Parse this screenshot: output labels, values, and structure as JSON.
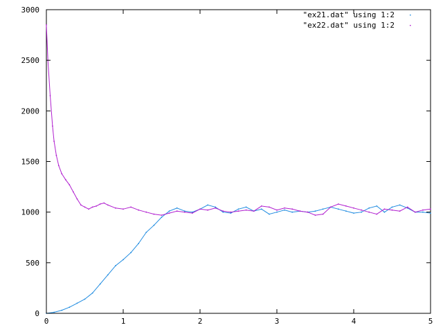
{
  "chart_data": {
    "type": "scatter",
    "title": "",
    "xlabel": "",
    "ylabel": "",
    "xlim": [
      0,
      5
    ],
    "ylim": [
      0,
      3000
    ],
    "xticks": [
      "0",
      "1",
      "2",
      "3",
      "4",
      "5"
    ],
    "yticks": [
      "0",
      "500",
      "1000",
      "1500",
      "2000",
      "2500",
      "3000"
    ],
    "grid": false,
    "legend_position": "top-right",
    "series": [
      {
        "name": "\"ex21.dat\" using 1:2",
        "color": "#1f8be0",
        "points": [
          [
            0,
            0
          ],
          [
            0.1,
            10
          ],
          [
            0.2,
            30
          ],
          [
            0.3,
            60
          ],
          [
            0.4,
            100
          ],
          [
            0.5,
            140
          ],
          [
            0.6,
            200
          ],
          [
            0.7,
            290
          ],
          [
            0.8,
            380
          ],
          [
            0.9,
            470
          ],
          [
            1.0,
            530
          ],
          [
            1.1,
            600
          ],
          [
            1.2,
            690
          ],
          [
            1.3,
            800
          ],
          [
            1.4,
            870
          ],
          [
            1.5,
            950
          ],
          [
            1.6,
            1010
          ],
          [
            1.7,
            1040
          ],
          [
            1.8,
            1010
          ],
          [
            1.9,
            1000
          ],
          [
            2.0,
            1030
          ],
          [
            2.1,
            1070
          ],
          [
            2.2,
            1050
          ],
          [
            2.3,
            1000
          ],
          [
            2.4,
            990
          ],
          [
            2.5,
            1030
          ],
          [
            2.6,
            1050
          ],
          [
            2.7,
            1010
          ],
          [
            2.8,
            1030
          ],
          [
            2.9,
            980
          ],
          [
            3.0,
            1000
          ],
          [
            3.1,
            1020
          ],
          [
            3.2,
            1000
          ],
          [
            3.3,
            1010
          ],
          [
            3.4,
            1000
          ],
          [
            3.5,
            1010
          ],
          [
            3.6,
            1030
          ],
          [
            3.7,
            1050
          ],
          [
            3.8,
            1030
          ],
          [
            3.9,
            1010
          ],
          [
            4.0,
            990
          ],
          [
            4.1,
            1000
          ],
          [
            4.2,
            1040
          ],
          [
            4.3,
            1060
          ],
          [
            4.4,
            1000
          ],
          [
            4.5,
            1050
          ],
          [
            4.6,
            1070
          ],
          [
            4.7,
            1040
          ],
          [
            4.8,
            1000
          ],
          [
            4.9,
            1000
          ],
          [
            5.0,
            990
          ]
        ]
      },
      {
        "name": "\"ex22.dat\" using 1:2",
        "color": "#b01ecf",
        "points": [
          [
            0,
            2850
          ],
          [
            0.02,
            2500
          ],
          [
            0.05,
            2150
          ],
          [
            0.08,
            1850
          ],
          [
            0.1,
            1700
          ],
          [
            0.13,
            1560
          ],
          [
            0.16,
            1460
          ],
          [
            0.2,
            1380
          ],
          [
            0.25,
            1320
          ],
          [
            0.3,
            1270
          ],
          [
            0.35,
            1200
          ],
          [
            0.4,
            1130
          ],
          [
            0.45,
            1070
          ],
          [
            0.5,
            1050
          ],
          [
            0.55,
            1030
          ],
          [
            0.6,
            1050
          ],
          [
            0.65,
            1060
          ],
          [
            0.7,
            1080
          ],
          [
            0.75,
            1090
          ],
          [
            0.8,
            1070
          ],
          [
            0.9,
            1040
          ],
          [
            1.0,
            1030
          ],
          [
            1.1,
            1050
          ],
          [
            1.2,
            1020
          ],
          [
            1.3,
            1000
          ],
          [
            1.4,
            980
          ],
          [
            1.5,
            970
          ],
          [
            1.6,
            990
          ],
          [
            1.7,
            1010
          ],
          [
            1.8,
            1000
          ],
          [
            1.9,
            990
          ],
          [
            2.0,
            1030
          ],
          [
            2.1,
            1020
          ],
          [
            2.2,
            1040
          ],
          [
            2.3,
            1010
          ],
          [
            2.4,
            1000
          ],
          [
            2.5,
            1010
          ],
          [
            2.6,
            1020
          ],
          [
            2.7,
            1010
          ],
          [
            2.8,
            1060
          ],
          [
            2.9,
            1050
          ],
          [
            3.0,
            1020
          ],
          [
            3.1,
            1040
          ],
          [
            3.2,
            1030
          ],
          [
            3.3,
            1010
          ],
          [
            3.4,
            1000
          ],
          [
            3.5,
            970
          ],
          [
            3.6,
            980
          ],
          [
            3.7,
            1050
          ],
          [
            3.8,
            1080
          ],
          [
            3.9,
            1060
          ],
          [
            4.0,
            1040
          ],
          [
            4.1,
            1020
          ],
          [
            4.2,
            1000
          ],
          [
            4.3,
            980
          ],
          [
            4.4,
            1030
          ],
          [
            4.5,
            1020
          ],
          [
            4.6,
            1010
          ],
          [
            4.7,
            1050
          ],
          [
            4.8,
            1000
          ],
          [
            4.9,
            1020
          ],
          [
            5.0,
            1030
          ]
        ]
      }
    ]
  }
}
